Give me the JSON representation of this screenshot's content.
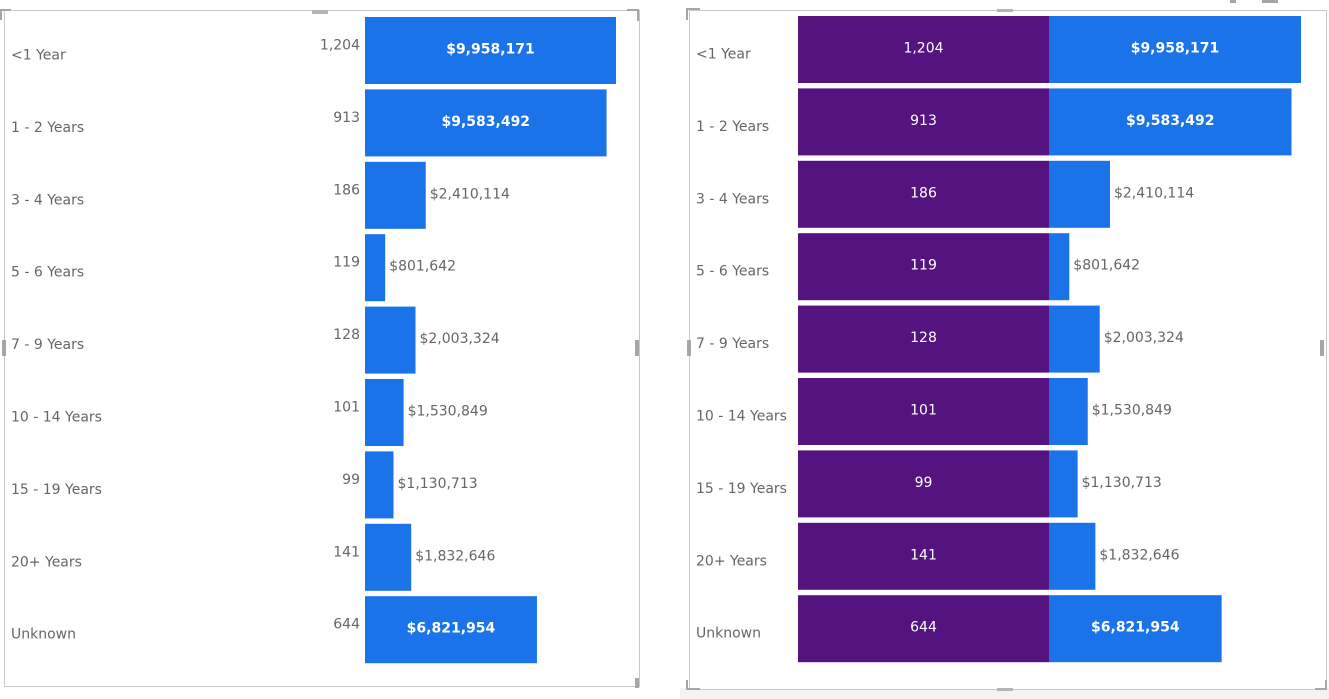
{
  "colors": {
    "accent_blue": "#1a73e8",
    "purple": "#54137f",
    "label_gray": "#666666",
    "border": "#c8c8c8"
  },
  "chart_data": [
    {
      "type": "bar",
      "orientation": "horizontal",
      "categories": [
        "<1 Year",
        "1 - 2 Years",
        "3 - 4 Years",
        "5 - 6 Years",
        "7 - 9 Years",
        "10 - 14 Years",
        "15 - 19 Years",
        "20+ Years",
        "Unknown"
      ],
      "counts": [
        1204,
        913,
        186,
        119,
        128,
        101,
        99,
        141,
        644
      ],
      "count_labels": [
        "1,204",
        "913",
        "186",
        "119",
        "128",
        "101",
        "99",
        "141",
        "644"
      ],
      "series": [
        {
          "values": [
            9958171,
            9583492,
            2410114,
            801642,
            2003324,
            1530849,
            1130713,
            1832646,
            6821954
          ],
          "labels": [
            "$9,958,171",
            "$9,583,492",
            "$2,410,114",
            "$801,642",
            "$2,003,324",
            "$1,530,849",
            "$1,130,713",
            "$1,832,646",
            "$6,821,954"
          ]
        }
      ],
      "grid": false,
      "legend": "none"
    },
    {
      "type": "bar",
      "orientation": "horizontal",
      "categories": [
        "<1 Year",
        "1 - 2 Years",
        "3 - 4 Years",
        "5 - 6 Years",
        "7 - 9 Years",
        "10 - 14 Years",
        "15 - 19 Years",
        "20+ Years",
        "Unknown"
      ],
      "series": [
        {
          "values": [
            1204,
            913,
            186,
            119,
            128,
            101,
            99,
            141,
            644
          ],
          "labels": [
            "1,204",
            "913",
            "186",
            "119",
            "128",
            "101",
            "99",
            "141",
            "644"
          ]
        },
        {
          "values": [
            9958171,
            9583492,
            2410114,
            801642,
            2003324,
            1530849,
            1130713,
            1832646,
            6821954
          ],
          "labels": [
            "$9,958,171",
            "$9,583,492",
            "$2,410,114",
            "$801,642",
            "$2,003,324",
            "$1,530,849",
            "$1,130,713",
            "$1,832,646",
            "$6,821,954"
          ]
        }
      ],
      "grid": false,
      "legend": "none"
    }
  ]
}
